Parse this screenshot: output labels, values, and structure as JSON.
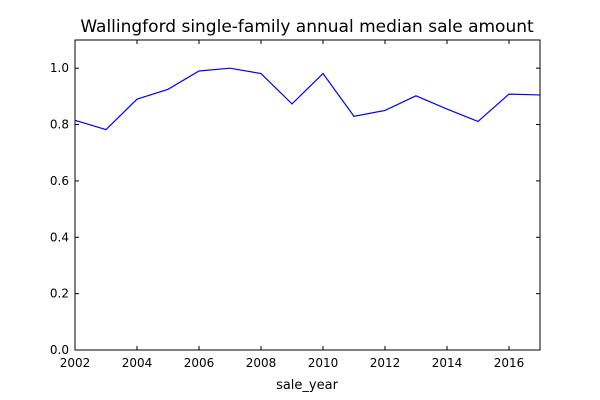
{
  "chart_data": {
    "type": "line",
    "title": "Wallingford single-family annual median sale amount",
    "xlabel": "sale_year",
    "ylabel": "",
    "xlim": [
      2002,
      2017
    ],
    "ylim": [
      0.0,
      1.1
    ],
    "xticks": [
      2002,
      2004,
      2006,
      2008,
      2010,
      2012,
      2014,
      2016
    ],
    "xtick_labels": [
      "2002",
      "2004",
      "2006",
      "2008",
      "2010",
      "2012",
      "2014",
      "2016"
    ],
    "yticks": [
      0.0,
      0.2,
      0.4,
      0.6,
      0.8,
      1.0
    ],
    "ytick_labels": [
      "0.0",
      "0.2",
      "0.4",
      "0.6",
      "0.8",
      "1.0"
    ],
    "grid": false,
    "legend": false,
    "line_color": "#0000ff",
    "series": [
      {
        "x": [
          2002,
          2003,
          2004,
          2005,
          2006,
          2007,
          2008,
          2009,
          2010,
          2011,
          2012,
          2013,
          2014,
          2015,
          2016,
          2017
        ],
        "values": [
          0.815,
          0.782,
          0.89,
          0.925,
          0.99,
          1.0,
          0.981,
          0.873,
          0.981,
          0.829,
          0.85,
          0.902,
          0.855,
          0.811,
          0.908,
          0.905
        ]
      }
    ]
  }
}
